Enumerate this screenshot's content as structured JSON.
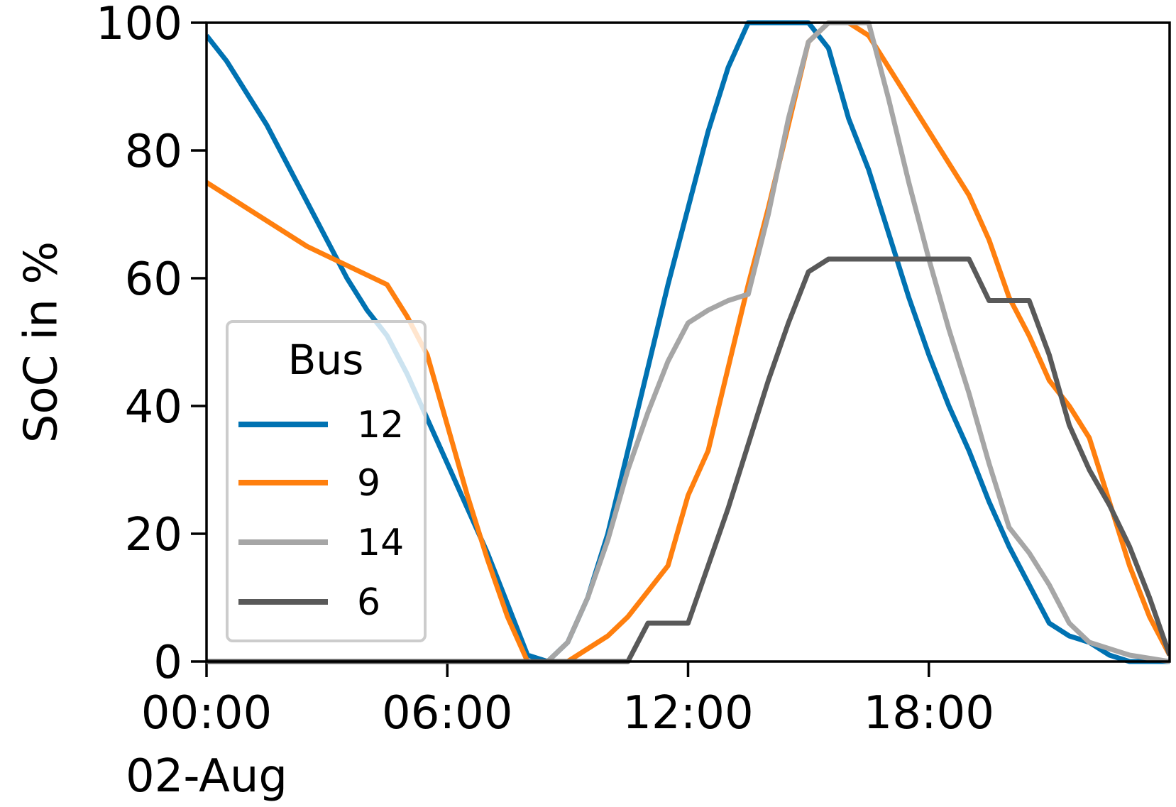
{
  "chart_data": {
    "type": "line",
    "xlabel": "",
    "ylabel": "SoC in %",
    "ylim": [
      0,
      100
    ],
    "xlim_hours": [
      0,
      24
    ],
    "x_ticks": [
      {
        "label": "00:00",
        "sublabel": "02-Aug"
      },
      {
        "label": "06:00",
        "sublabel": ""
      },
      {
        "label": "12:00",
        "sublabel": ""
      },
      {
        "label": "18:00",
        "sublabel": ""
      }
    ],
    "y_ticks": [
      "0",
      "20",
      "40",
      "60",
      "80",
      "100"
    ],
    "grid": false,
    "legend": {
      "title": "Bus",
      "placement": "center-left"
    },
    "x_hours": [
      0,
      0.5,
      1,
      1.5,
      2,
      2.5,
      3,
      3.5,
      4,
      4.5,
      5,
      5.5,
      6,
      6.5,
      7,
      7.5,
      8,
      8.5,
      9,
      9.5,
      10,
      10.5,
      11,
      11.5,
      12,
      12.5,
      13,
      13.5,
      14,
      14.5,
      15,
      15.5,
      16,
      16.5,
      17,
      17.5,
      18,
      18.5,
      19,
      19.5,
      20,
      20.5,
      21,
      21.5,
      22,
      22.5,
      23,
      23.5,
      24
    ],
    "series": [
      {
        "name": "12",
        "color": "#0072B2",
        "values": [
          98,
          94,
          89,
          84,
          78,
          72,
          66,
          60,
          55,
          51,
          45,
          38,
          31,
          24,
          17,
          9,
          1,
          0,
          3,
          10,
          20,
          33,
          46,
          59,
          71,
          83,
          93,
          100,
          100,
          100,
          100,
          96,
          85,
          77,
          67,
          57,
          48,
          40,
          33,
          25,
          18,
          12,
          6,
          4,
          3,
          1,
          0,
          0,
          0
        ]
      },
      {
        "name": "9",
        "color": "#FF7F0E",
        "values": [
          75,
          73,
          71,
          69,
          67,
          65,
          63.5,
          62,
          60.5,
          59,
          54,
          48,
          37,
          26,
          16,
          7,
          0,
          0,
          0,
          2,
          4,
          7,
          11,
          15,
          26,
          33,
          46,
          59,
          71,
          84,
          97,
          100,
          100,
          98,
          93,
          88,
          83,
          78,
          73,
          66,
          57,
          51,
          44,
          40,
          35,
          25,
          15,
          7,
          1
        ]
      },
      {
        "name": "14",
        "color": "#A6A6A6",
        "values": [
          0,
          0,
          0,
          0,
          0,
          0,
          0,
          0,
          0,
          0,
          0,
          0,
          0,
          0,
          0,
          0,
          0,
          0,
          3,
          10,
          19,
          30,
          39,
          47,
          53,
          55,
          56.5,
          57.5,
          70,
          85,
          97,
          100,
          100,
          100,
          88,
          75,
          63,
          52,
          42,
          31,
          21,
          17,
          12,
          6,
          3,
          2,
          1,
          0.5,
          0
        ]
      },
      {
        "name": "6",
        "color": "#595959",
        "values": [
          0,
          0,
          0,
          0,
          0,
          0,
          0,
          0,
          0,
          0,
          0,
          0,
          0,
          0,
          0,
          0,
          0,
          0,
          0,
          0,
          0,
          0,
          6,
          6,
          6,
          15,
          24,
          34,
          44,
          53,
          61,
          63,
          63,
          63,
          63,
          63,
          63,
          63,
          63,
          56.5,
          56.5,
          56.5,
          48,
          37,
          30,
          24.5,
          18,
          10,
          1
        ]
      }
    ]
  }
}
